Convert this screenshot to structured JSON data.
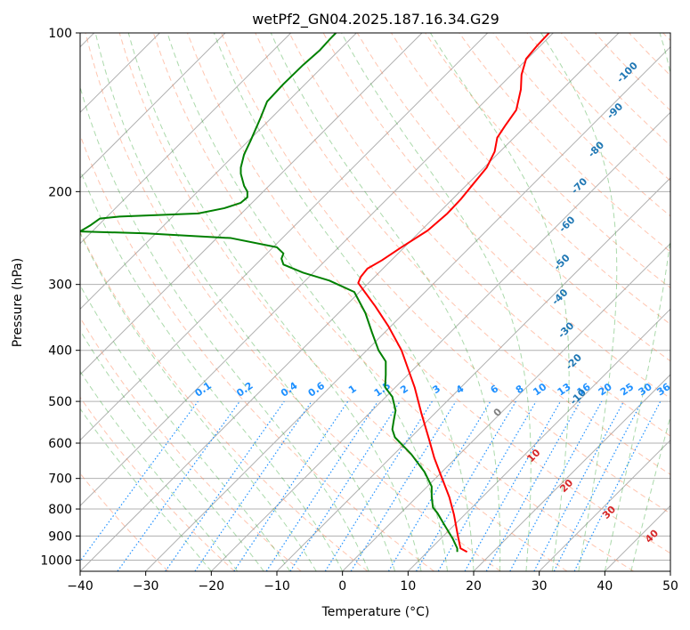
{
  "chart_data": {
    "type": "line",
    "title": "wetPf2_GN04.2025.187.16.34.G29",
    "xlabel": "Temperature (°C)",
    "ylabel": "Pressure (hPa)",
    "xlim": [
      -40,
      50
    ],
    "ylim": [
      1050,
      100
    ],
    "y_scale": "log",
    "grid": true,
    "x_ticks": [
      -40,
      -30,
      -20,
      -10,
      0,
      10,
      20,
      30,
      40,
      50
    ],
    "y_ticks": [
      100,
      200,
      300,
      400,
      500,
      600,
      700,
      800,
      900,
      1000
    ],
    "colors": {
      "temperature": "#ff0000",
      "dewpoint": "#008000",
      "isotherm_labels": "#1f77b4",
      "mixing_ratio": "#1e90ff",
      "moist_adiabat": "#2ca02c",
      "dry_adiabat": "#ff7f50",
      "isotherm_zero_label": "#808080",
      "isotherm_warm_labels": "#d62728",
      "grid": "#b0b0b0"
    },
    "series": [
      {
        "key": "temperature",
        "points": [
          [
            19,
            965
          ],
          [
            18,
            950
          ],
          [
            17.6,
            900
          ],
          [
            17,
            820
          ],
          [
            16.3,
            760
          ],
          [
            15,
            690
          ],
          [
            14,
            640
          ],
          [
            13.2,
            590
          ],
          [
            12,
            525
          ],
          [
            11,
            470
          ],
          [
            9,
            400
          ],
          [
            7,
            360
          ],
          [
            5,
            330
          ],
          [
            3.4,
            310
          ],
          [
            2.4,
            298
          ],
          [
            2.8,
            290
          ],
          [
            3.8,
            280
          ],
          [
            6,
            270
          ],
          [
            9,
            255
          ],
          [
            13,
            237
          ],
          [
            16,
            220
          ],
          [
            18,
            207
          ],
          [
            20,
            193
          ],
          [
            22,
            180
          ],
          [
            23.2,
            168
          ],
          [
            23.6,
            158
          ],
          [
            24.8,
            150
          ],
          [
            26.5,
            140
          ],
          [
            27.2,
            128
          ],
          [
            27.3,
            120
          ],
          [
            28,
            112
          ],
          [
            29.6,
            106
          ],
          [
            31.5,
            100
          ]
        ]
      },
      {
        "key": "dewpoint",
        "points": [
          [
            17.5,
            965
          ],
          [
            17.5,
            950
          ],
          [
            16.8,
            910
          ],
          [
            15.6,
            860
          ],
          [
            14.5,
            815
          ],
          [
            13.8,
            795
          ],
          [
            13.6,
            760
          ],
          [
            13.6,
            725
          ],
          [
            12.5,
            680
          ],
          [
            10.5,
            630
          ],
          [
            8,
            585
          ],
          [
            7.6,
            565
          ],
          [
            7.8,
            545
          ],
          [
            8.1,
            520
          ],
          [
            7.6,
            490
          ],
          [
            6.5,
            470
          ],
          [
            6.6,
            445
          ],
          [
            6.6,
            420
          ],
          [
            5.5,
            400
          ],
          [
            4.5,
            370
          ],
          [
            3.5,
            340
          ],
          [
            1.8,
            310
          ],
          [
            -2,
            295
          ],
          [
            -6,
            285
          ],
          [
            -9,
            275
          ],
          [
            -9.3,
            268
          ],
          [
            -9,
            262
          ],
          [
            -10,
            255
          ],
          [
            -17,
            245
          ],
          [
            -30,
            240
          ],
          [
            -40,
            238
          ],
          [
            -38.5,
            232
          ],
          [
            -37,
            225
          ],
          [
            -34,
            223
          ],
          [
            -22,
            220
          ],
          [
            -18,
            215
          ],
          [
            -15.5,
            210
          ],
          [
            -14.5,
            205
          ],
          [
            -14.5,
            200
          ],
          [
            -15,
            195
          ],
          [
            -15.5,
            185
          ],
          [
            -15.5,
            180
          ],
          [
            -15,
            170
          ],
          [
            -14,
            160
          ],
          [
            -12.5,
            145
          ],
          [
            -11.5,
            135
          ],
          [
            -9,
            125
          ],
          [
            -6,
            115
          ],
          [
            -3.5,
            108
          ],
          [
            -2,
            103
          ],
          [
            -1,
            100
          ]
        ]
      }
    ],
    "isotherm_labels": [
      "-100",
      "-90",
      "-80",
      "-70",
      "-60",
      "-50",
      "-40",
      "-30",
      "-20",
      "-10"
    ],
    "isotherm_label_points": [
      [
        -32,
        120
      ],
      [
        -28,
        142
      ],
      [
        -25,
        168
      ],
      [
        -22,
        197
      ],
      [
        -18,
        233
      ],
      [
        -13,
        275
      ],
      [
        -8,
        320
      ],
      [
        -2,
        370
      ],
      [
        4,
        425
      ],
      [
        10,
        495
      ]
    ],
    "mixing_ratio_labels": [
      "0.1",
      "0.2",
      "0.4",
      "0.6",
      "1",
      "1.5",
      "2",
      "3",
      "4",
      "6",
      "8",
      "10",
      "13",
      "16",
      "20",
      "25",
      "30",
      "36"
    ],
    "mixing_ratio_values": [
      0.1,
      0.2,
      0.4,
      0.6,
      1,
      1.5,
      2,
      3,
      4,
      6,
      8,
      10,
      13,
      16,
      20,
      25,
      30,
      36
    ],
    "warm_isotherm_labels": [
      "0",
      "10",
      "20",
      "30",
      "40"
    ],
    "warm_isotherm_label_points": [
      [
        24,
        530
      ],
      [
        29.5,
        640
      ],
      [
        34.5,
        730
      ],
      [
        41,
        820
      ],
      [
        47.5,
        910
      ]
    ]
  }
}
